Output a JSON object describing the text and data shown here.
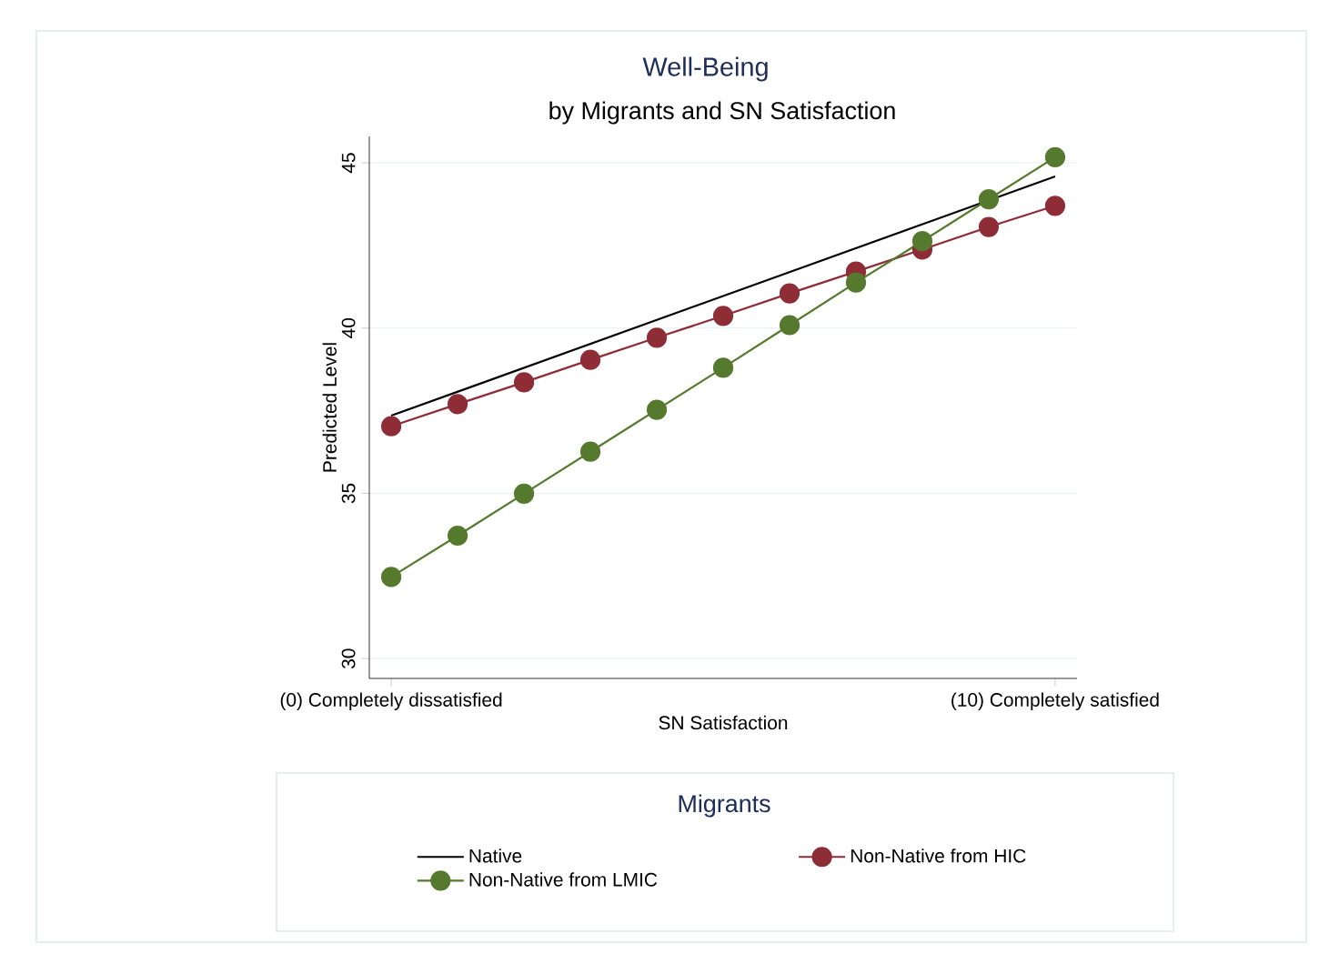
{
  "chart_data": {
    "type": "line",
    "title": "Well-Being",
    "subtitle": "by Migrants and SN Satisfaction",
    "xlabel": "SN Satisfaction",
    "ylabel": "Predicted Level",
    "legend_title": "Migrants",
    "xlim": [
      -0.33,
      10.33
    ],
    "ylim": [
      29.4,
      45.8
    ],
    "xticks": [
      {
        "value": 0,
        "label": "(0) Completely dissatisfied"
      },
      {
        "value": 10,
        "label": "(10) Completely satisfied"
      }
    ],
    "yticks": [
      30,
      35,
      40,
      45
    ],
    "grid": "y",
    "legend": "bottom",
    "marker": "circle",
    "series": [
      {
        "name": "Native",
        "color": "#000000",
        "marker": "none",
        "x": [
          0,
          10
        ],
        "values": [
          37.35,
          44.59
        ]
      },
      {
        "name": "Non-Native from HIC",
        "color": "#8f2d37",
        "x": [
          0,
          1,
          2,
          3,
          4,
          5,
          6,
          7,
          8,
          9,
          10
        ],
        "values": [
          37.03,
          37.7,
          38.36,
          39.04,
          39.71,
          40.37,
          41.05,
          41.71,
          42.38,
          43.06,
          43.7
        ]
      },
      {
        "name": "Non-Native from LMIC",
        "color": "#557a2e",
        "x": [
          0,
          1,
          2,
          3,
          4,
          5,
          6,
          7,
          8,
          9,
          10
        ],
        "values": [
          32.47,
          33.72,
          34.99,
          36.26,
          37.53,
          38.8,
          40.09,
          41.38,
          42.63,
          43.9,
          45.17
        ]
      }
    ]
  }
}
